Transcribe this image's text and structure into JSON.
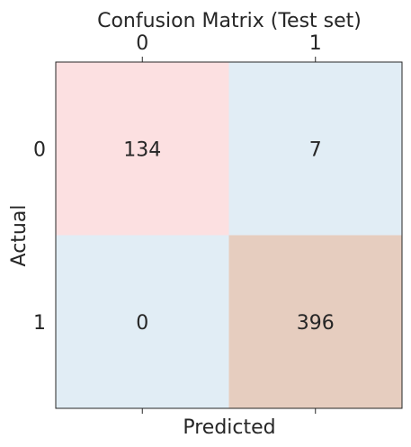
{
  "chart_data": {
    "type": "heatmap",
    "title": "Confusion Matrix (Test set)",
    "xlabel": "Predicted",
    "ylabel": "Actual",
    "x_categories": [
      "0",
      "1"
    ],
    "y_categories": [
      "0",
      "1"
    ],
    "values": [
      [
        134,
        7
      ],
      [
        0,
        396
      ]
    ],
    "cell_colors": [
      [
        "#fce0e1",
        "#e1edf5"
      ],
      [
        "#e1edf5",
        "#e6cdbf"
      ]
    ],
    "xaxis_position": "top",
    "grid": false,
    "legend": "none"
  }
}
